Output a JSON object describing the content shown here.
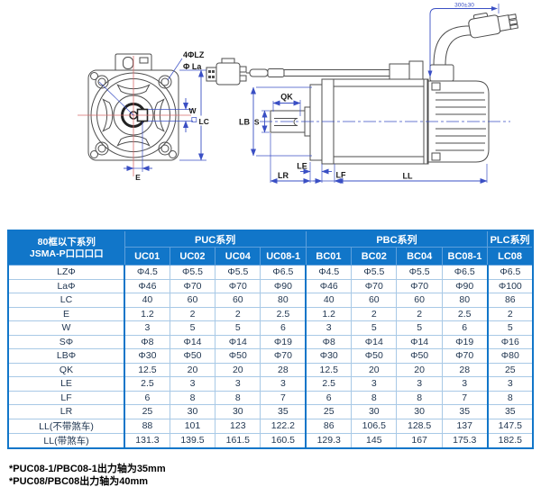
{
  "drawing": {
    "labels": {
      "four_lz": "4ΦLZ",
      "la": "Φ La",
      "w": "W",
      "lc": "LC",
      "e": "E",
      "qk": "QK",
      "s": "S",
      "lb": "LB",
      "le": "LE",
      "lr": "LR",
      "lf": "LF",
      "ll": "LL",
      "cable_length": "300±30"
    },
    "colors": {
      "outline": "#4d4d4d",
      "dimension": "#3a4fc4",
      "centerline": "#d96b6b"
    }
  },
  "table": {
    "accent_color": "#1176c9",
    "corner_header": {
      "line1": "80框以下系列",
      "line2": "JSMA-P口口口口"
    },
    "groups": [
      {
        "label": "PUC系列",
        "span": 4
      },
      {
        "label": "PBC系列",
        "span": 4
      },
      {
        "label": "PLC系列",
        "span": 1
      }
    ],
    "columns": [
      "UC01",
      "UC02",
      "UC04",
      "UC08-1",
      "BC01",
      "BC02",
      "BC04",
      "BC08-1",
      "LC08"
    ],
    "rows": [
      {
        "label": "LZΦ",
        "values": [
          "Φ4.5",
          "Φ5.5",
          "Φ5.5",
          "Φ6.5",
          "Φ4.5",
          "Φ5.5",
          "Φ5.5",
          "Φ6.5",
          "Φ6.5"
        ]
      },
      {
        "label": "LaΦ",
        "values": [
          "Φ46",
          "Φ70",
          "Φ70",
          "Φ90",
          "Φ46",
          "Φ70",
          "Φ70",
          "Φ90",
          "Φ100"
        ]
      },
      {
        "label": "LC",
        "values": [
          "40",
          "60",
          "60",
          "80",
          "40",
          "60",
          "60",
          "80",
          "86"
        ]
      },
      {
        "label": "E",
        "values": [
          "1.2",
          "2",
          "2",
          "2.5",
          "1.2",
          "2",
          "2",
          "2.5",
          "2"
        ]
      },
      {
        "label": "W",
        "values": [
          "3",
          "5",
          "5",
          "6",
          "3",
          "5",
          "5",
          "6",
          "5"
        ]
      },
      {
        "label": "SΦ",
        "values": [
          "Φ8",
          "Φ14",
          "Φ14",
          "Φ19",
          "Φ8",
          "Φ14",
          "Φ14",
          "Φ19",
          "Φ16"
        ]
      },
      {
        "label": "LBΦ",
        "values": [
          "Φ30",
          "Φ50",
          "Φ50",
          "Φ70",
          "Φ30",
          "Φ50",
          "Φ50",
          "Φ70",
          "Φ80"
        ]
      },
      {
        "label": "QK",
        "values": [
          "12.5",
          "20",
          "20",
          "28",
          "12.5",
          "20",
          "20",
          "28",
          "25"
        ]
      },
      {
        "label": "LE",
        "values": [
          "2.5",
          "3",
          "3",
          "3",
          "2.5",
          "3",
          "3",
          "3",
          "3"
        ]
      },
      {
        "label": "LF",
        "values": [
          "6",
          "8",
          "8",
          "7",
          "6",
          "8",
          "8",
          "7",
          "8"
        ]
      },
      {
        "label": "LR",
        "values": [
          "25",
          "30",
          "30",
          "35",
          "25",
          "30",
          "30",
          "35",
          "35"
        ]
      },
      {
        "label": "LL(不带煞车)",
        "values": [
          "88",
          "101",
          "123",
          "122.2",
          "86",
          "106.5",
          "128.5",
          "137",
          "147.5"
        ]
      },
      {
        "label": "LL(带煞车)",
        "values": [
          "131.3",
          "139.5",
          "161.5",
          "160.5",
          "129.3",
          "145",
          "167",
          "175.3",
          "182.5"
        ]
      }
    ]
  },
  "footnotes": [
    "*PUC08-1/PBC08-1出力轴为35mm",
    "*PUC08/PBC08出力轴为40mm"
  ]
}
